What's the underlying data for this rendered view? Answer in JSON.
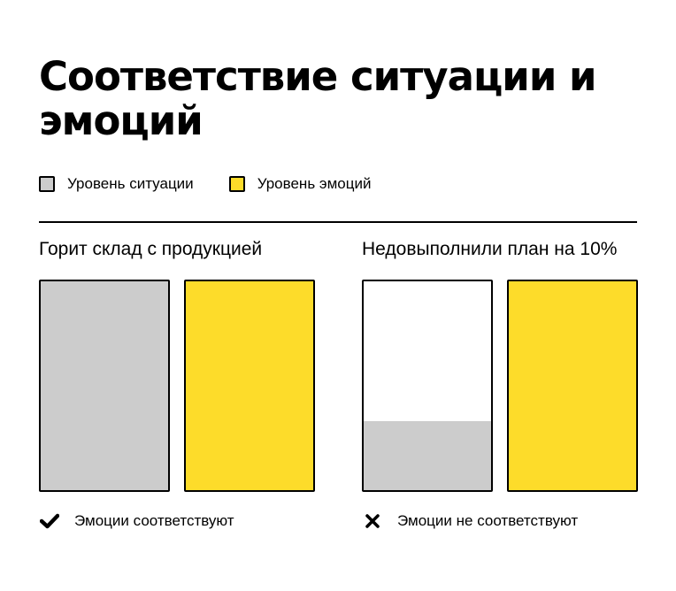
{
  "title": "Соответствие ситуации и эмоций",
  "colors": {
    "situation": "#cccccc",
    "emotion": "#fddc2a",
    "empty": "#ffffff",
    "outline": "#000000"
  },
  "legend": {
    "situation_label": "Уровень ситуации",
    "emotion_label": "Уровень эмоций"
  },
  "chart_data": [
    {
      "type": "bar",
      "title": "Горит склад с продукцией",
      "categories": [
        "Уровень ситуации",
        "Уровень эмоций"
      ],
      "values": [
        1.0,
        1.0
      ],
      "ylim": [
        0,
        1
      ],
      "verdict": "Эмоции соответствуют",
      "verdict_icon": "check-icon"
    },
    {
      "type": "bar",
      "title": "Недовыполнили план на 10%",
      "categories": [
        "Уровень ситуации",
        "Уровень эмоций"
      ],
      "values": [
        0.33,
        1.0
      ],
      "ylim": [
        0,
        1
      ],
      "verdict": "Эмоции не соответствуют",
      "verdict_icon": "cross-icon"
    }
  ]
}
